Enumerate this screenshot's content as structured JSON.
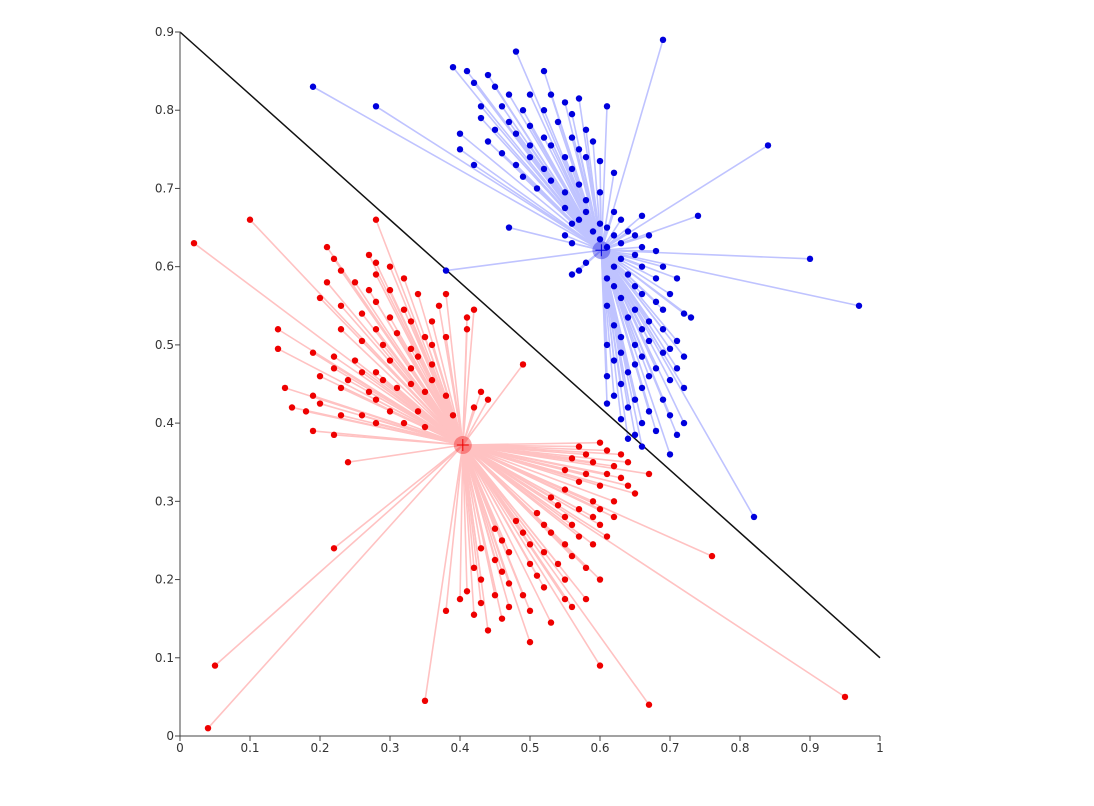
{
  "chart_data": {
    "type": "scatter",
    "title": "",
    "xlabel": "",
    "ylabel": "",
    "xlim": [
      0,
      1
    ],
    "ylim": [
      0,
      0.9
    ],
    "grid": false,
    "x_ticks": [
      "0",
      "0.1",
      "0.2",
      "0.3",
      "0.4",
      "0.5",
      "0.6",
      "0.7",
      "0.8",
      "0.9",
      "1"
    ],
    "y_ticks": [
      "0",
      "0.1",
      "0.2",
      "0.3",
      "0.4",
      "0.5",
      "0.6",
      "0.7",
      "0.8",
      "0.9"
    ],
    "decision_boundary": {
      "from": [
        0,
        0.9
      ],
      "to": [
        1,
        0.1
      ],
      "color": "#111111"
    },
    "series": [
      {
        "color": "#0000dd",
        "link_color": "#bfc3ff",
        "centroid": [
          0.602,
          0.621
        ],
        "points": [
          [
            0.69,
            0.89
          ],
          [
            0.48,
            0.875
          ],
          [
            0.39,
            0.855
          ],
          [
            0.41,
            0.85
          ],
          [
            0.44,
            0.845
          ],
          [
            0.52,
            0.85
          ],
          [
            0.42,
            0.835
          ],
          [
            0.45,
            0.83
          ],
          [
            0.47,
            0.82
          ],
          [
            0.5,
            0.82
          ],
          [
            0.53,
            0.82
          ],
          [
            0.57,
            0.815
          ],
          [
            0.55,
            0.81
          ],
          [
            0.19,
            0.83
          ],
          [
            0.28,
            0.805
          ],
          [
            0.43,
            0.805
          ],
          [
            0.46,
            0.805
          ],
          [
            0.49,
            0.8
          ],
          [
            0.52,
            0.8
          ],
          [
            0.56,
            0.795
          ],
          [
            0.61,
            0.805
          ],
          [
            0.43,
            0.79
          ],
          [
            0.47,
            0.785
          ],
          [
            0.5,
            0.78
          ],
          [
            0.54,
            0.785
          ],
          [
            0.58,
            0.775
          ],
          [
            0.45,
            0.775
          ],
          [
            0.48,
            0.77
          ],
          [
            0.52,
            0.765
          ],
          [
            0.56,
            0.765
          ],
          [
            0.59,
            0.76
          ],
          [
            0.4,
            0.77
          ],
          [
            0.44,
            0.76
          ],
          [
            0.5,
            0.755
          ],
          [
            0.53,
            0.755
          ],
          [
            0.57,
            0.75
          ],
          [
            0.84,
            0.755
          ],
          [
            0.4,
            0.75
          ],
          [
            0.46,
            0.745
          ],
          [
            0.5,
            0.74
          ],
          [
            0.55,
            0.74
          ],
          [
            0.58,
            0.74
          ],
          [
            0.6,
            0.735
          ],
          [
            0.42,
            0.73
          ],
          [
            0.48,
            0.73
          ],
          [
            0.52,
            0.725
          ],
          [
            0.56,
            0.725
          ],
          [
            0.62,
            0.72
          ],
          [
            0.49,
            0.715
          ],
          [
            0.53,
            0.71
          ],
          [
            0.57,
            0.705
          ],
          [
            0.51,
            0.7
          ],
          [
            0.55,
            0.695
          ],
          [
            0.6,
            0.695
          ],
          [
            0.58,
            0.685
          ],
          [
            0.55,
            0.675
          ],
          [
            0.58,
            0.67
          ],
          [
            0.62,
            0.67
          ],
          [
            0.66,
            0.665
          ],
          [
            0.74,
            0.665
          ],
          [
            0.57,
            0.66
          ],
          [
            0.6,
            0.655
          ],
          [
            0.63,
            0.66
          ],
          [
            0.56,
            0.655
          ],
          [
            0.61,
            0.65
          ],
          [
            0.64,
            0.645
          ],
          [
            0.65,
            0.64
          ],
          [
            0.59,
            0.645
          ],
          [
            0.62,
            0.64
          ],
          [
            0.67,
            0.64
          ],
          [
            0.47,
            0.65
          ],
          [
            0.55,
            0.64
          ],
          [
            0.6,
            0.635
          ],
          [
            0.63,
            0.63
          ],
          [
            0.66,
            0.625
          ],
          [
            0.56,
            0.63
          ],
          [
            0.61,
            0.625
          ],
          [
            0.65,
            0.615
          ],
          [
            0.68,
            0.62
          ],
          [
            0.63,
            0.61
          ],
          [
            0.9,
            0.61
          ],
          [
            0.58,
            0.605
          ],
          [
            0.62,
            0.6
          ],
          [
            0.66,
            0.6
          ],
          [
            0.69,
            0.6
          ],
          [
            0.57,
            0.595
          ],
          [
            0.64,
            0.59
          ],
          [
            0.68,
            0.585
          ],
          [
            0.71,
            0.585
          ],
          [
            0.38,
            0.595
          ],
          [
            0.56,
            0.59
          ],
          [
            0.61,
            0.585
          ],
          [
            0.65,
            0.575
          ],
          [
            0.62,
            0.575
          ],
          [
            0.66,
            0.565
          ],
          [
            0.7,
            0.565
          ],
          [
            0.63,
            0.56
          ],
          [
            0.68,
            0.555
          ],
          [
            0.97,
            0.55
          ],
          [
            0.61,
            0.55
          ],
          [
            0.65,
            0.545
          ],
          [
            0.69,
            0.545
          ],
          [
            0.72,
            0.54
          ],
          [
            0.64,
            0.535
          ],
          [
            0.67,
            0.53
          ],
          [
            0.73,
            0.535
          ],
          [
            0.62,
            0.525
          ],
          [
            0.66,
            0.52
          ],
          [
            0.69,
            0.52
          ],
          [
            0.63,
            0.51
          ],
          [
            0.67,
            0.505
          ],
          [
            0.71,
            0.505
          ],
          [
            0.61,
            0.5
          ],
          [
            0.65,
            0.5
          ],
          [
            0.7,
            0.495
          ],
          [
            0.63,
            0.49
          ],
          [
            0.66,
            0.485
          ],
          [
            0.69,
            0.49
          ],
          [
            0.72,
            0.485
          ],
          [
            0.62,
            0.48
          ],
          [
            0.65,
            0.475
          ],
          [
            0.68,
            0.47
          ],
          [
            0.71,
            0.47
          ],
          [
            0.64,
            0.465
          ],
          [
            0.67,
            0.46
          ],
          [
            0.61,
            0.46
          ],
          [
            0.7,
            0.455
          ],
          [
            0.63,
            0.45
          ],
          [
            0.66,
            0.445
          ],
          [
            0.72,
            0.445
          ],
          [
            0.62,
            0.435
          ],
          [
            0.65,
            0.43
          ],
          [
            0.69,
            0.43
          ],
          [
            0.61,
            0.425
          ],
          [
            0.64,
            0.42
          ],
          [
            0.67,
            0.415
          ],
          [
            0.7,
            0.41
          ],
          [
            0.63,
            0.405
          ],
          [
            0.66,
            0.4
          ],
          [
            0.72,
            0.4
          ],
          [
            0.68,
            0.39
          ],
          [
            0.65,
            0.385
          ],
          [
            0.66,
            0.37
          ],
          [
            0.71,
            0.385
          ],
          [
            0.64,
            0.38
          ],
          [
            0.7,
            0.36
          ],
          [
            0.82,
            0.28
          ]
        ]
      },
      {
        "color": "#ee0000",
        "link_color": "#ffc2c2",
        "centroid": [
          0.404,
          0.372
        ],
        "points": [
          [
            0.1,
            0.66
          ],
          [
            0.28,
            0.66
          ],
          [
            0.02,
            0.63
          ],
          [
            0.21,
            0.625
          ],
          [
            0.27,
            0.615
          ],
          [
            0.22,
            0.61
          ],
          [
            0.28,
            0.605
          ],
          [
            0.3,
            0.6
          ],
          [
            0.23,
            0.595
          ],
          [
            0.28,
            0.59
          ],
          [
            0.32,
            0.585
          ],
          [
            0.21,
            0.58
          ],
          [
            0.25,
            0.58
          ],
          [
            0.27,
            0.57
          ],
          [
            0.3,
            0.57
          ],
          [
            0.34,
            0.565
          ],
          [
            0.2,
            0.56
          ],
          [
            0.23,
            0.55
          ],
          [
            0.28,
            0.555
          ],
          [
            0.32,
            0.545
          ],
          [
            0.37,
            0.55
          ],
          [
            0.38,
            0.565
          ],
          [
            0.42,
            0.545
          ],
          [
            0.41,
            0.535
          ],
          [
            0.26,
            0.54
          ],
          [
            0.3,
            0.535
          ],
          [
            0.33,
            0.53
          ],
          [
            0.36,
            0.53
          ],
          [
            0.14,
            0.52
          ],
          [
            0.23,
            0.52
          ],
          [
            0.28,
            0.52
          ],
          [
            0.31,
            0.515
          ],
          [
            0.35,
            0.51
          ],
          [
            0.38,
            0.51
          ],
          [
            0.41,
            0.52
          ],
          [
            0.26,
            0.505
          ],
          [
            0.29,
            0.5
          ],
          [
            0.33,
            0.495
          ],
          [
            0.36,
            0.5
          ],
          [
            0.14,
            0.495
          ],
          [
            0.19,
            0.49
          ],
          [
            0.22,
            0.485
          ],
          [
            0.25,
            0.48
          ],
          [
            0.3,
            0.48
          ],
          [
            0.34,
            0.485
          ],
          [
            0.36,
            0.475
          ],
          [
            0.22,
            0.47
          ],
          [
            0.26,
            0.465
          ],
          [
            0.28,
            0.465
          ],
          [
            0.33,
            0.47
          ],
          [
            0.2,
            0.46
          ],
          [
            0.24,
            0.455
          ],
          [
            0.29,
            0.455
          ],
          [
            0.33,
            0.45
          ],
          [
            0.36,
            0.455
          ],
          [
            0.49,
            0.475
          ],
          [
            0.23,
            0.445
          ],
          [
            0.27,
            0.44
          ],
          [
            0.31,
            0.445
          ],
          [
            0.35,
            0.44
          ],
          [
            0.15,
            0.445
          ],
          [
            0.19,
            0.435
          ],
          [
            0.28,
            0.43
          ],
          [
            0.38,
            0.435
          ],
          [
            0.43,
            0.44
          ],
          [
            0.44,
            0.43
          ],
          [
            0.42,
            0.42
          ],
          [
            0.2,
            0.425
          ],
          [
            0.16,
            0.42
          ],
          [
            0.18,
            0.415
          ],
          [
            0.23,
            0.41
          ],
          [
            0.26,
            0.41
          ],
          [
            0.3,
            0.415
          ],
          [
            0.34,
            0.415
          ],
          [
            0.39,
            0.41
          ],
          [
            0.28,
            0.4
          ],
          [
            0.32,
            0.4
          ],
          [
            0.35,
            0.395
          ],
          [
            0.19,
            0.39
          ],
          [
            0.22,
            0.385
          ],
          [
            0.24,
            0.35
          ],
          [
            0.57,
            0.37
          ],
          [
            0.58,
            0.36
          ],
          [
            0.6,
            0.375
          ],
          [
            0.61,
            0.365
          ],
          [
            0.63,
            0.36
          ],
          [
            0.56,
            0.355
          ],
          [
            0.59,
            0.35
          ],
          [
            0.62,
            0.345
          ],
          [
            0.64,
            0.35
          ],
          [
            0.55,
            0.34
          ],
          [
            0.58,
            0.335
          ],
          [
            0.61,
            0.335
          ],
          [
            0.63,
            0.33
          ],
          [
            0.67,
            0.335
          ],
          [
            0.57,
            0.325
          ],
          [
            0.6,
            0.32
          ],
          [
            0.64,
            0.32
          ],
          [
            0.55,
            0.315
          ],
          [
            0.65,
            0.31
          ],
          [
            0.53,
            0.305
          ],
          [
            0.59,
            0.3
          ],
          [
            0.62,
            0.3
          ],
          [
            0.54,
            0.295
          ],
          [
            0.57,
            0.29
          ],
          [
            0.6,
            0.29
          ],
          [
            0.51,
            0.285
          ],
          [
            0.55,
            0.28
          ],
          [
            0.59,
            0.28
          ],
          [
            0.62,
            0.28
          ],
          [
            0.48,
            0.275
          ],
          [
            0.52,
            0.27
          ],
          [
            0.56,
            0.27
          ],
          [
            0.6,
            0.27
          ],
          [
            0.45,
            0.265
          ],
          [
            0.49,
            0.26
          ],
          [
            0.53,
            0.26
          ],
          [
            0.57,
            0.255
          ],
          [
            0.61,
            0.255
          ],
          [
            0.46,
            0.25
          ],
          [
            0.5,
            0.245
          ],
          [
            0.55,
            0.245
          ],
          [
            0.59,
            0.245
          ],
          [
            0.43,
            0.24
          ],
          [
            0.47,
            0.235
          ],
          [
            0.52,
            0.235
          ],
          [
            0.56,
            0.23
          ],
          [
            0.22,
            0.24
          ],
          [
            0.45,
            0.225
          ],
          [
            0.5,
            0.22
          ],
          [
            0.54,
            0.22
          ],
          [
            0.58,
            0.215
          ],
          [
            0.76,
            0.23
          ],
          [
            0.42,
            0.215
          ],
          [
            0.46,
            0.21
          ],
          [
            0.51,
            0.205
          ],
          [
            0.55,
            0.2
          ],
          [
            0.43,
            0.2
          ],
          [
            0.47,
            0.195
          ],
          [
            0.52,
            0.19
          ],
          [
            0.6,
            0.2
          ],
          [
            0.41,
            0.185
          ],
          [
            0.45,
            0.18
          ],
          [
            0.49,
            0.18
          ],
          [
            0.55,
            0.175
          ],
          [
            0.58,
            0.175
          ],
          [
            0.4,
            0.175
          ],
          [
            0.43,
            0.17
          ],
          [
            0.47,
            0.165
          ],
          [
            0.5,
            0.16
          ],
          [
            0.56,
            0.165
          ],
          [
            0.38,
            0.16
          ],
          [
            0.42,
            0.155
          ],
          [
            0.46,
            0.15
          ],
          [
            0.53,
            0.145
          ],
          [
            0.44,
            0.135
          ],
          [
            0.5,
            0.12
          ],
          [
            0.05,
            0.09
          ],
          [
            0.6,
            0.09
          ],
          [
            0.95,
            0.05
          ],
          [
            0.35,
            0.045
          ],
          [
            0.67,
            0.04
          ],
          [
            0.04,
            0.01
          ]
        ]
      }
    ]
  }
}
